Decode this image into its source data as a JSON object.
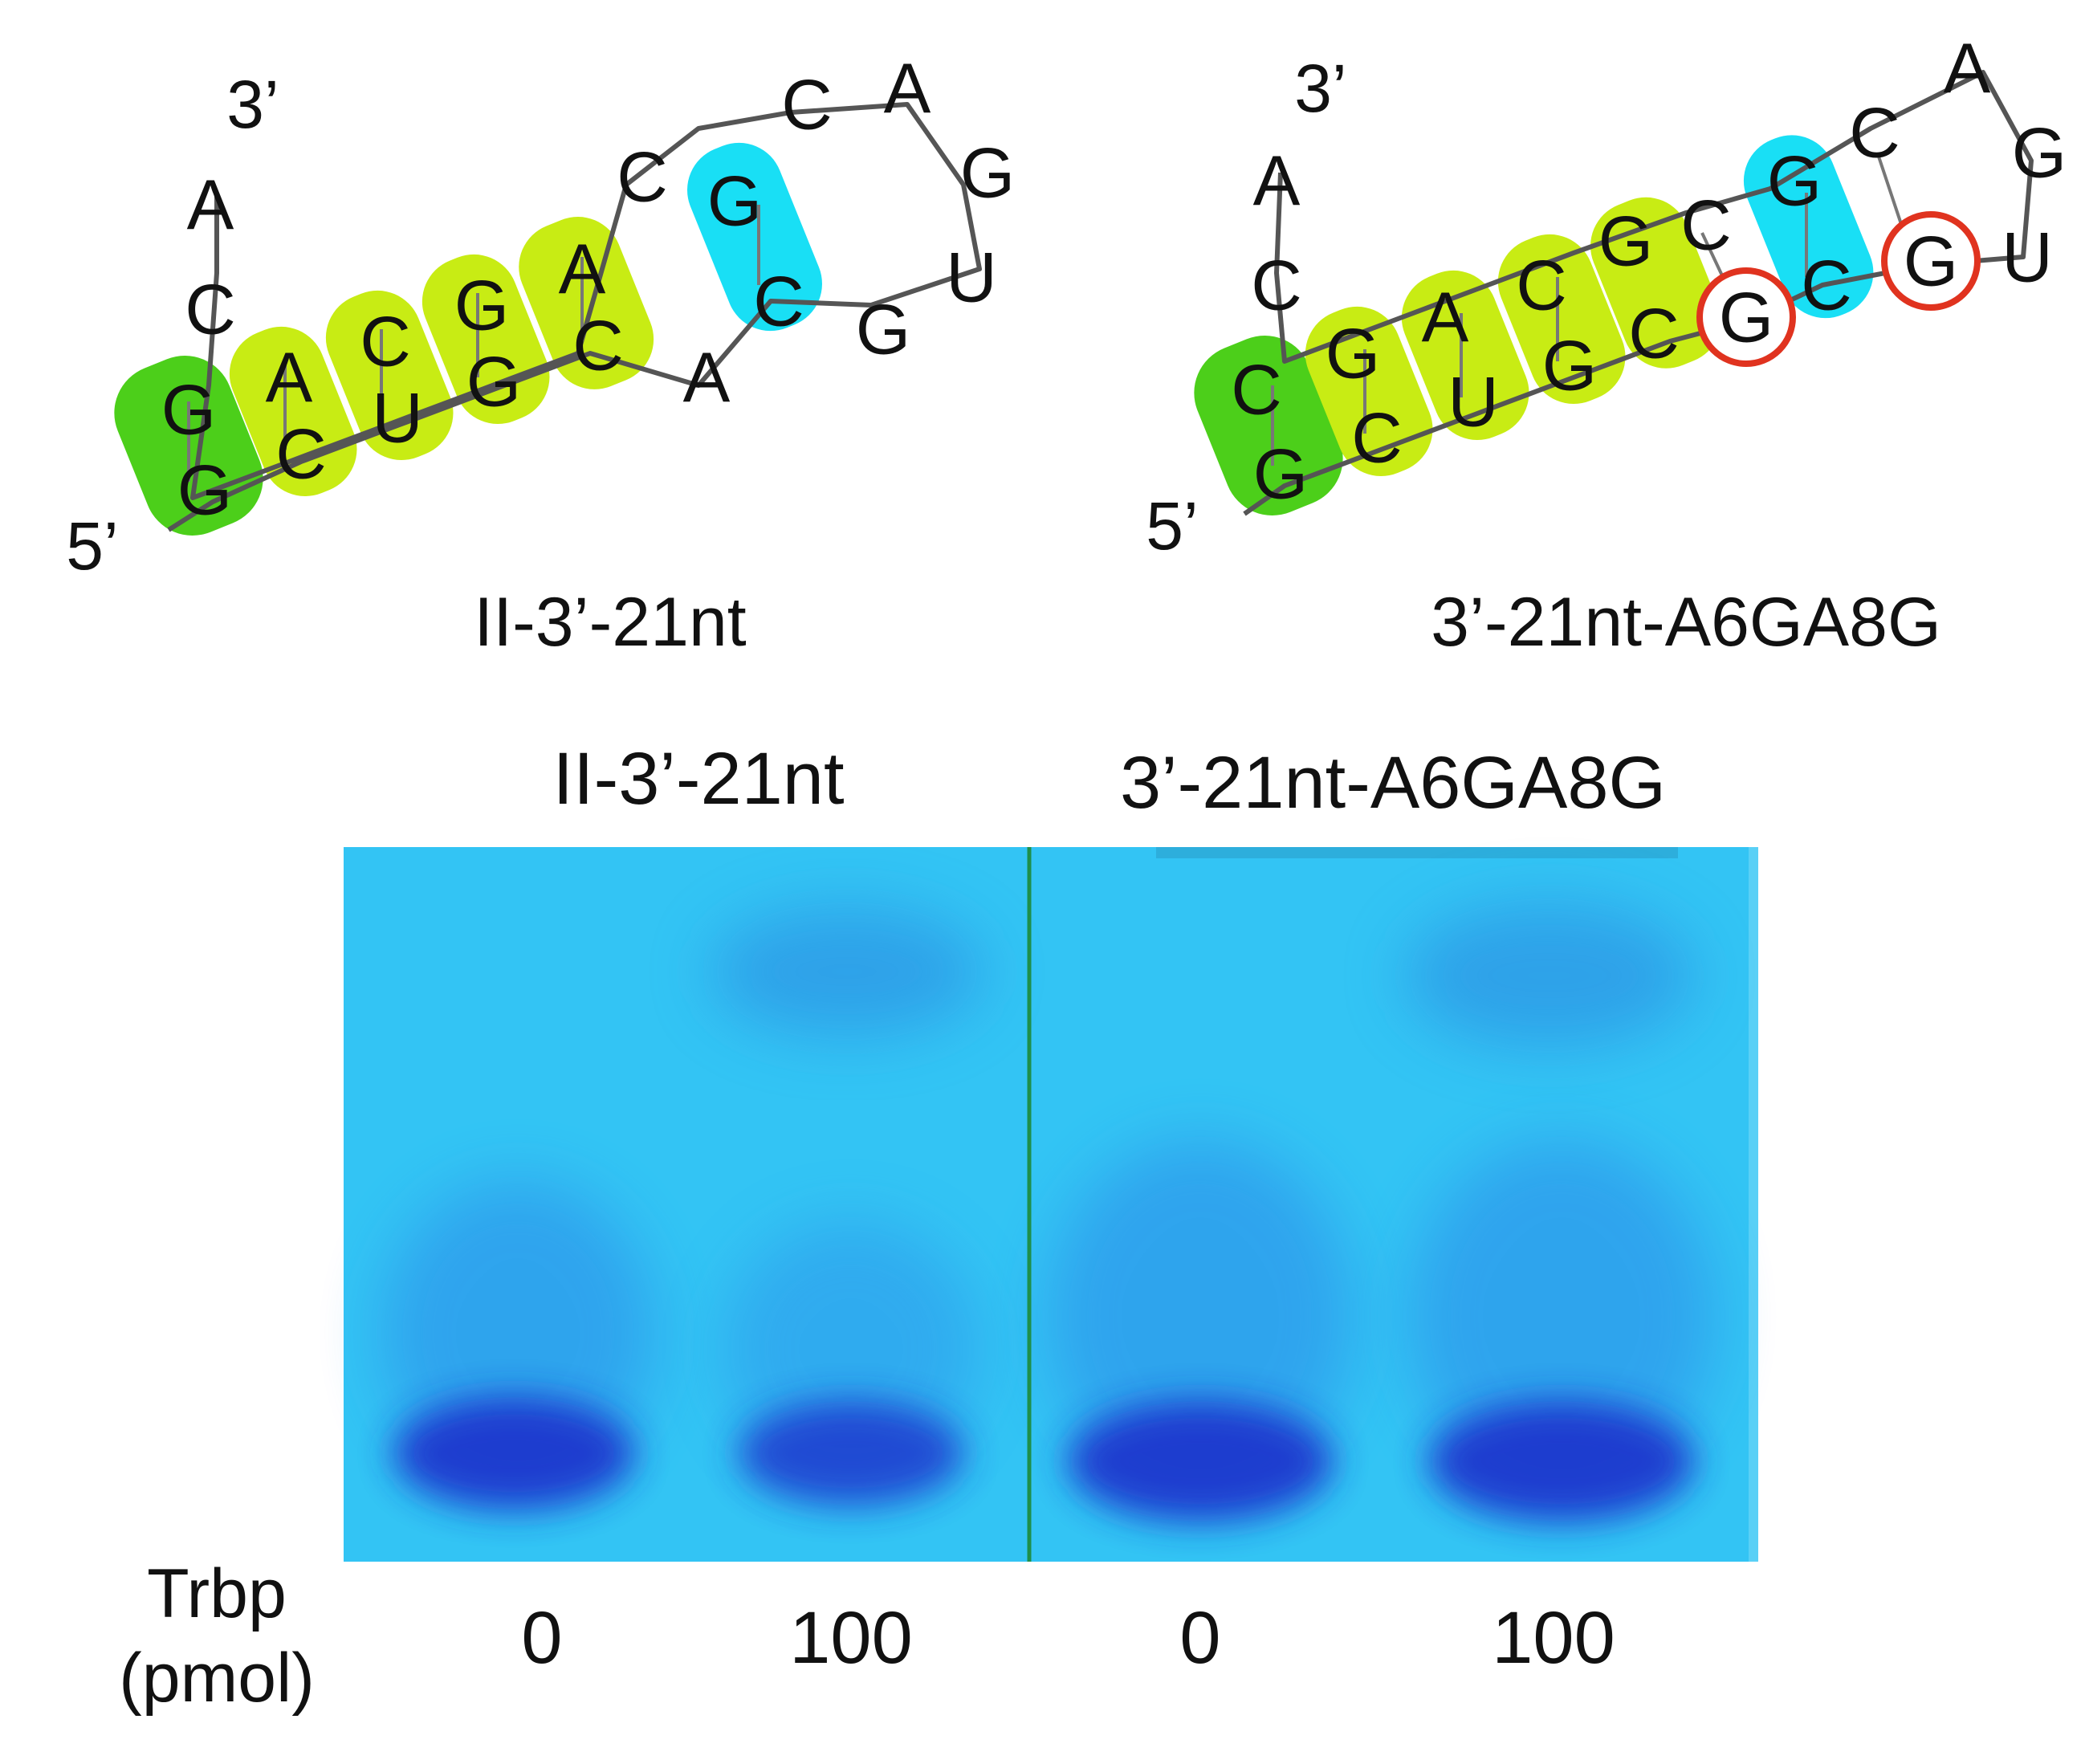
{
  "structures": [
    {
      "caption": "II-3’-21nt",
      "five_prime": "5’",
      "three_prime": "3’",
      "nucleotides": [
        "G",
        "C",
        "U",
        "G",
        "C",
        "A",
        "C",
        "G",
        "A",
        "U",
        "G",
        "A",
        "C",
        "G",
        "C",
        "A",
        "G",
        "C",
        "A",
        "G",
        "C"
      ],
      "tail": [
        "C",
        "A"
      ]
    },
    {
      "caption": "3’-21nt-A6GA8G",
      "five_prime": "5’",
      "three_prime": "3’",
      "nucleotides": [
        "G",
        "C",
        "U",
        "G",
        "C",
        "G",
        "C",
        "G",
        "G",
        "U",
        "G",
        "A",
        "C",
        "G",
        "C",
        "C",
        "G",
        "C",
        "A",
        "G",
        "C"
      ],
      "tail": [
        "C",
        "A"
      ],
      "mutated": [
        "G",
        "G"
      ]
    }
  ],
  "gel": {
    "group_labels": [
      "II-3’-21nt",
      "3’-21nt-A6GA8G"
    ],
    "lane_values": [
      "0",
      "100",
      "0",
      "100"
    ],
    "trbp_label_line1": "Trbp",
    "trbp_label_line2": "(pmol)"
  },
  "colors": {
    "gel_background": "#33c4f4",
    "band": "#1a33cc",
    "stem_yellow": "#c8ec14",
    "stem_green": "#4ccf1a",
    "loop_cyan": "#19dff5",
    "mutation_circle": "#e0331f"
  }
}
